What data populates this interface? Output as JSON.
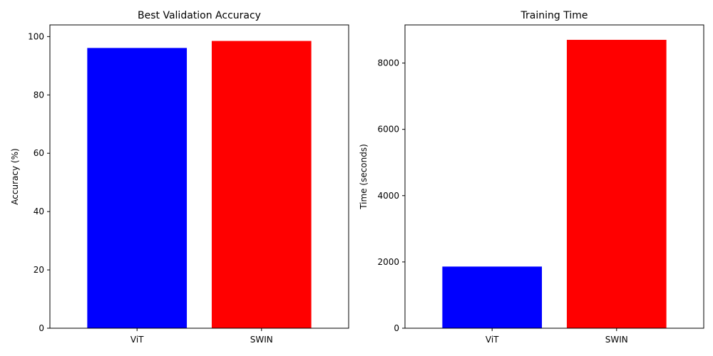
{
  "chart_data": [
    {
      "type": "bar",
      "title": "Best Validation Accuracy",
      "xlabel": "",
      "ylabel": "Accuracy (%)",
      "categories": [
        "ViT",
        "SWIN"
      ],
      "values": [
        96.1,
        98.5
      ],
      "colors": [
        "#0000ff",
        "#ff0000"
      ],
      "ylim": [
        0,
        104
      ],
      "yticks": [
        0,
        20,
        40,
        60,
        80,
        100
      ],
      "grid": false
    },
    {
      "type": "bar",
      "title": "Training Time",
      "xlabel": "",
      "ylabel": "Time (seconds)",
      "categories": [
        "ViT",
        "SWIN"
      ],
      "values": [
        1860,
        8700
      ],
      "colors": [
        "#0000ff",
        "#ff0000"
      ],
      "ylim": [
        0,
        9150
      ],
      "yticks": [
        0,
        2000,
        4000,
        6000,
        8000
      ],
      "grid": false
    }
  ]
}
